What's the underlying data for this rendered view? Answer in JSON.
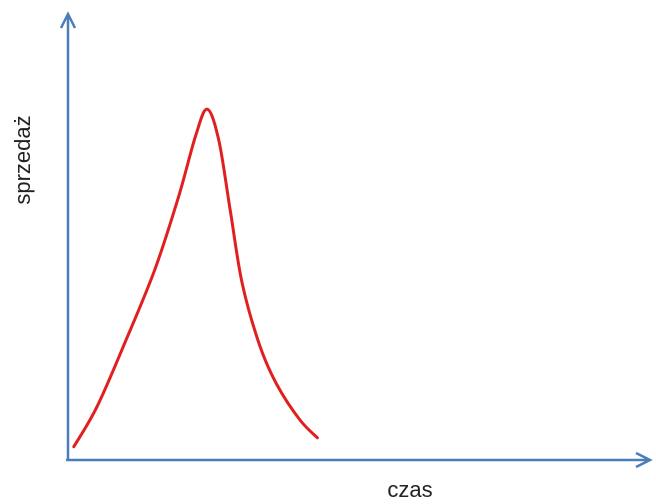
{
  "chart_data": {
    "type": "line",
    "title": "",
    "xlabel": "czas",
    "ylabel": "sprzedaż",
    "xlim": [
      0,
      10
    ],
    "ylim": [
      0,
      10
    ],
    "grid": false,
    "legend": "none",
    "series": [
      {
        "x": [
          0.1,
          0.5,
          1.0,
          1.5,
          1.9,
          2.2,
          2.4,
          2.6,
          2.8,
          3.0,
          3.3,
          3.6,
          4.0,
          4.3
        ],
        "y": [
          0.3,
          1.2,
          2.7,
          4.3,
          5.9,
          7.3,
          7.9,
          7.2,
          5.6,
          4.0,
          2.6,
          1.7,
          0.9,
          0.5
        ]
      }
    ]
  },
  "colors": {
    "axis": "#4a7ebb",
    "curve": "#e02020"
  }
}
